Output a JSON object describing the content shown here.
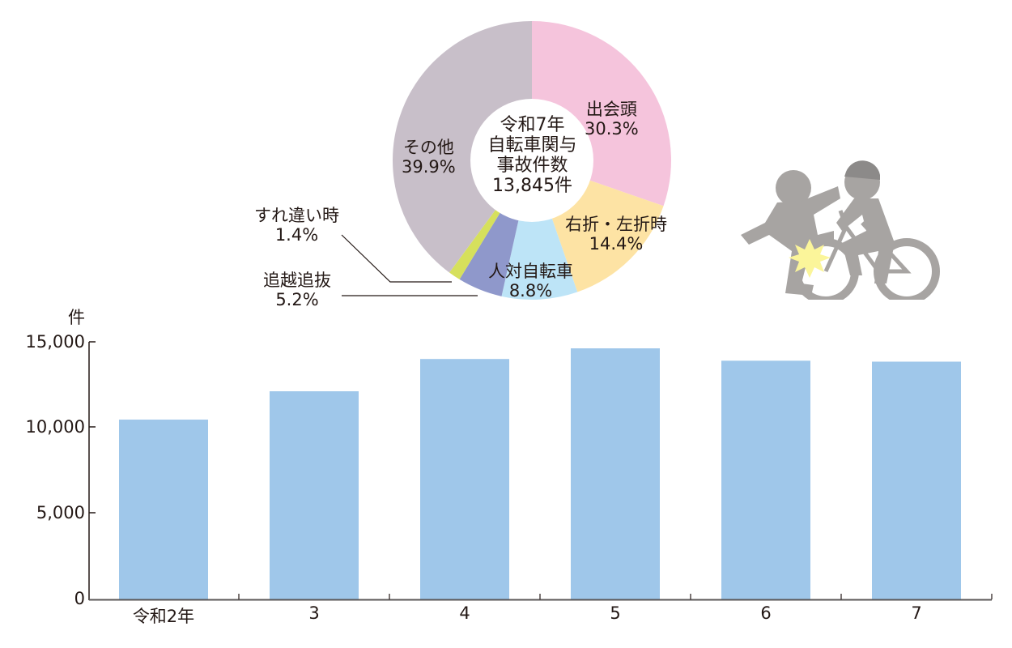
{
  "chart_data": [
    {
      "type": "pie",
      "subtype": "donut",
      "title": "令和7年 自転車関与事故件数 13,845件",
      "center_label": [
        "令和7年",
        "自転車関与",
        "事故件数",
        "13,845件"
      ],
      "total": 13845,
      "slices": [
        {
          "label": "出会頭",
          "value": 30.3,
          "color": "#f5c4dc"
        },
        {
          "label": "右折・左折時",
          "value": 14.4,
          "color": "#fde3a4"
        },
        {
          "label": "人対自転車",
          "value": 8.8,
          "color": "#bde4f7"
        },
        {
          "label": "追越追抜",
          "value": 5.2,
          "color": "#8f98cb"
        },
        {
          "label": "すれ違い時",
          "value": 1.4,
          "color": "#d6e05c"
        },
        {
          "label": "その他",
          "value": 39.9,
          "color": "#c8bfc9"
        }
      ],
      "unit": "%"
    },
    {
      "type": "bar",
      "categories": [
        "令和2年",
        "3",
        "4",
        "5",
        "6",
        "7"
      ],
      "values": [
        10470,
        12120,
        14000,
        14620,
        13900,
        13845
      ],
      "ylabel": "件",
      "ylim": [
        0,
        15000
      ],
      "yticks": [
        "0",
        "5,000",
        "10,000",
        "15,000"
      ],
      "color": "#9fc7ea",
      "grid": false
    }
  ],
  "pie": {
    "center": [
      "令和7年",
      "自転車関与",
      "事故件数",
      "13,845件"
    ],
    "labels": {
      "deaigashira": {
        "name": "出会頭",
        "pct": "30.3%"
      },
      "usetsu": {
        "name": "右折・左折時",
        "pct": "14.4%"
      },
      "hitotai": {
        "name": "人対自転車",
        "pct": "8.8%"
      },
      "oikoshi": {
        "name": "追越追抜",
        "pct": "5.2%"
      },
      "surechigai": {
        "name": "すれ違い時",
        "pct": "1.4%"
      },
      "sonota": {
        "name": "その他",
        "pct": "39.9%"
      }
    }
  },
  "bar": {
    "unit": "件",
    "yticks": [
      "15,000",
      "10,000",
      "5,000",
      "0"
    ],
    "xticks": [
      "令和2年",
      "3",
      "4",
      "5",
      "6",
      "7"
    ]
  },
  "illustration": {
    "name": "bicycle-pedestrian-collision"
  }
}
